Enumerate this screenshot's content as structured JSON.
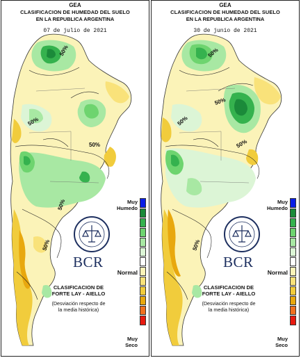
{
  "colors": {
    "scale": [
      "#0a1ee6",
      "#1b8a3a",
      "#35b24e",
      "#6ed46f",
      "#a8e8a3",
      "#dcf5d6",
      "#ffffff",
      "#fbf3b8",
      "#f9e27a",
      "#f1cc3c",
      "#e8a80e",
      "#f07020",
      "#e81a10"
    ],
    "brand": "#1d2f5f",
    "frame": "#222222"
  },
  "legend": {
    "muy_humedo": "Muy\nHumedo",
    "normal": "Normal",
    "muy_seco": "Muy\nSeco"
  },
  "brand": {
    "name": "BCR",
    "seal": "bolsa-de-comercio-de-rosario-seal"
  },
  "panels": [
    {
      "org": "GEA",
      "title_line1": "CLASIFICACION DE HUMEDAD DEL SUELO",
      "title_line2": "EN LA REPUBLICA ARGENTINA",
      "date": "07 de julio de 2021",
      "classification_line1": "CLASIFICACION DE",
      "classification_line2": "FORTE LAY - AIELLO",
      "note_line1": "(Desviación respecto de",
      "note_line2": "la media histórica)",
      "contour_labels": [
        "50%",
        "50%",
        "50%",
        "50%",
        "50%"
      ]
    },
    {
      "org": "GEA",
      "title_line1": "CLASIFICACION DE HUMEDAD DEL SUELO",
      "title_line2": "EN LA REPUBLICA ARGENTINA",
      "date": "30 de junio de 2021",
      "classification_line1": "CLASIFICACION DE",
      "classification_line2": "FORTE LAY - AIELLO",
      "note_line1": "(Desviación respecto de",
      "note_line2": "la media histórica)",
      "contour_labels": [
        "50%",
        "50%",
        "50%",
        "50%",
        "50%"
      ]
    }
  ]
}
